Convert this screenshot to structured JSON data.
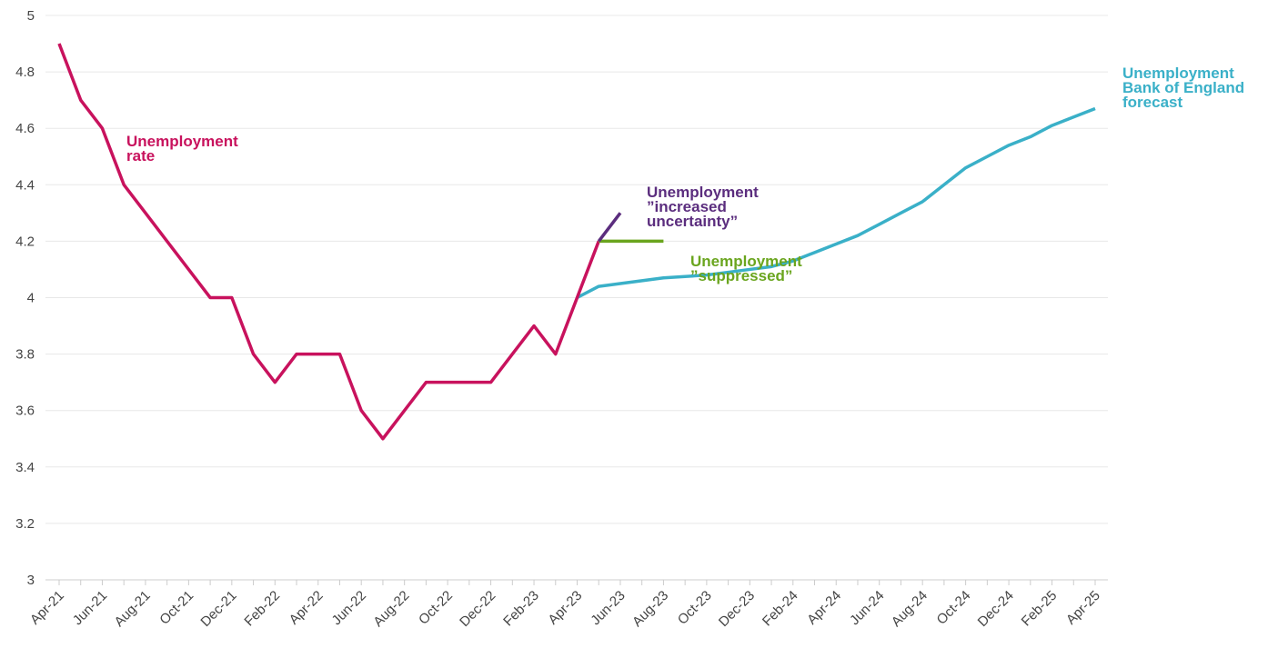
{
  "chart_data": {
    "type": "line",
    "categories": [
      "Apr-21",
      null,
      "Jun-21",
      null,
      "Aug-21",
      null,
      "Oct-21",
      null,
      "Dec-21",
      null,
      "Feb-22",
      null,
      "Apr-22",
      null,
      "Jun-22",
      null,
      "Aug-22",
      null,
      "Oct-22",
      null,
      "Dec-22",
      null,
      "Feb-23",
      null,
      "Apr-23",
      null,
      "Jun-23",
      null,
      "Aug-23",
      null,
      "Oct-23",
      null,
      "Dec-23",
      null,
      "Feb-24",
      null,
      "Apr-24",
      null,
      "Jun-24",
      null,
      "Aug-24",
      null,
      "Oct-24",
      null,
      "Dec-24",
      null,
      "Feb-25",
      null,
      "Apr-25"
    ],
    "ylim": [
      3,
      5
    ],
    "yticks": [
      3,
      3.2,
      3.4,
      3.6,
      3.8,
      4,
      4.2,
      4.4,
      4.6,
      4.8,
      5
    ],
    "grid": true,
    "series": [
      {
        "name": "Unemployment rate",
        "color": "#c8125d",
        "values": [
          4.9,
          4.7,
          4.6,
          4.4,
          4.3,
          4.2,
          4.1,
          4.0,
          4.0,
          3.8,
          3.7,
          3.8,
          3.8,
          3.8,
          3.6,
          3.5,
          3.6,
          3.7,
          3.7,
          3.7,
          3.7,
          3.8,
          3.9,
          3.8,
          4.0,
          4.2,
          null,
          null,
          null,
          null,
          null,
          null,
          null,
          null,
          null,
          null,
          null,
          null,
          null,
          null,
          null,
          null,
          null,
          null,
          null,
          null,
          null,
          null,
          null
        ]
      },
      {
        "name": "Unemployment ”increased uncertainty”",
        "color": "#5b2d7e",
        "values": [
          null,
          null,
          null,
          null,
          null,
          null,
          null,
          null,
          null,
          null,
          null,
          null,
          null,
          null,
          null,
          null,
          null,
          null,
          null,
          null,
          null,
          null,
          null,
          null,
          null,
          4.2,
          4.3,
          null,
          null,
          null,
          null,
          null,
          null,
          null,
          null,
          null,
          null,
          null,
          null,
          null,
          null,
          null,
          null,
          null,
          null,
          null,
          null,
          null,
          null
        ]
      },
      {
        "name": "Unemployment ”suppressed”",
        "color": "#6aa51e",
        "values": [
          null,
          null,
          null,
          null,
          null,
          null,
          null,
          null,
          null,
          null,
          null,
          null,
          null,
          null,
          null,
          null,
          null,
          null,
          null,
          null,
          null,
          null,
          null,
          null,
          null,
          4.2,
          4.2,
          4.2,
          4.2,
          null,
          null,
          null,
          null,
          null,
          null,
          null,
          null,
          null,
          null,
          null,
          null,
          null,
          null,
          null,
          null,
          null,
          null,
          null,
          null
        ]
      },
      {
        "name": "Unemployment Bank of England forecast",
        "color": "#3ab0c8",
        "values": [
          null,
          null,
          null,
          null,
          null,
          null,
          null,
          null,
          null,
          null,
          null,
          null,
          null,
          null,
          null,
          null,
          null,
          null,
          null,
          null,
          null,
          null,
          null,
          null,
          4.0,
          4.04,
          4.05,
          4.06,
          4.07,
          4.075,
          4.08,
          4.09,
          4.1,
          4.11,
          4.13,
          4.16,
          4.19,
          4.22,
          4.26,
          4.3,
          4.34,
          4.4,
          4.46,
          4.5,
          4.54,
          4.57,
          4.61,
          4.64,
          4.67
        ]
      }
    ]
  }
}
